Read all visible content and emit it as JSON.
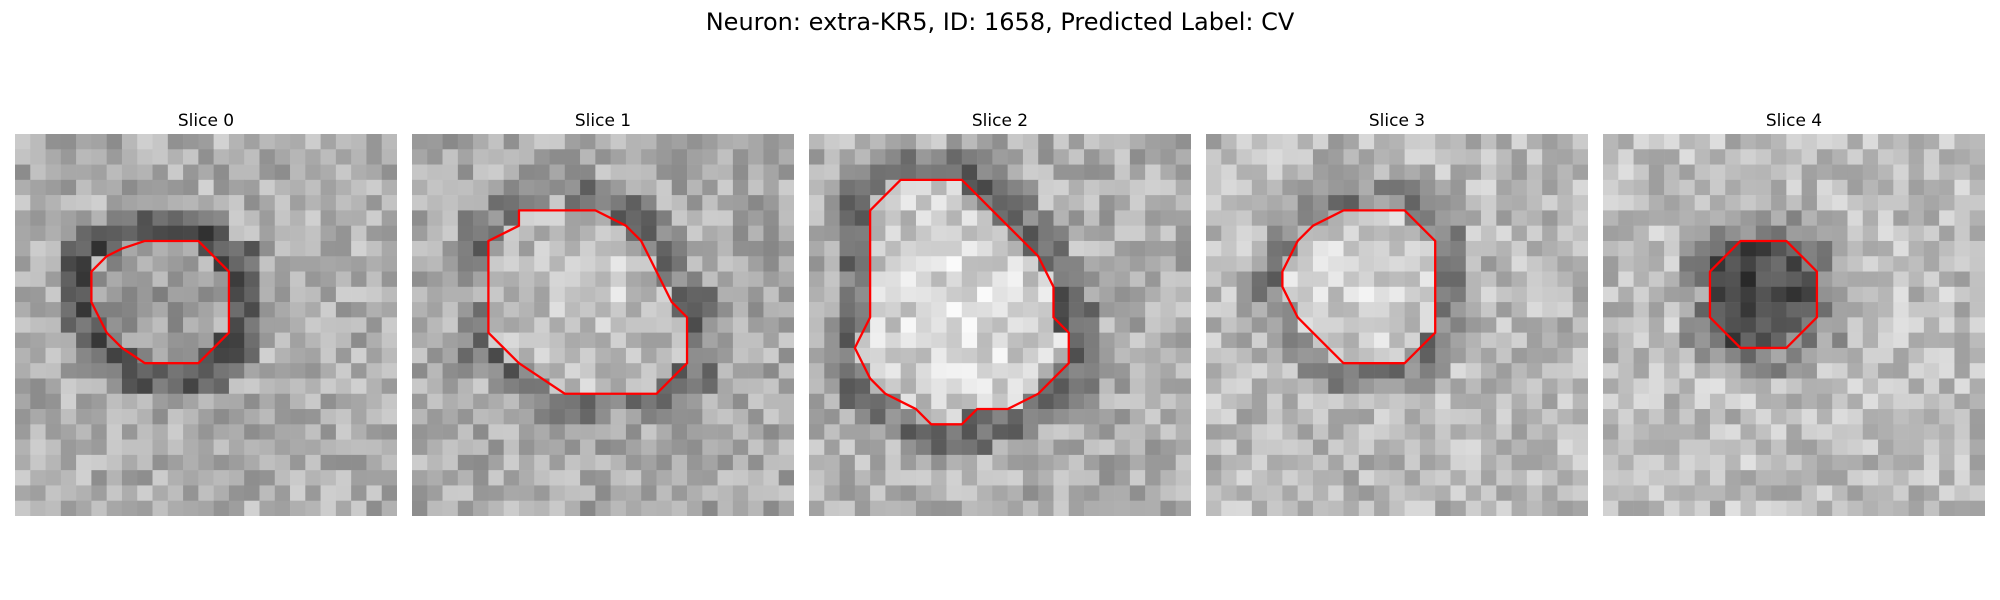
{
  "figure": {
    "title": "Neuron: extra-KR5, ID: 1658, Predicted Label: CV"
  },
  "contour_color": "#ff0000",
  "slices": [
    {
      "label": "Slice 0",
      "contour": [
        [
          8.5,
          7
        ],
        [
          12,
          7
        ],
        [
          14,
          9
        ],
        [
          14,
          13
        ],
        [
          13,
          14
        ],
        [
          12,
          15
        ],
        [
          8.5,
          15
        ],
        [
          7,
          14
        ],
        [
          6,
          13
        ],
        [
          5,
          11
        ],
        [
          5,
          9
        ],
        [
          6,
          8
        ],
        [
          7,
          7.5
        ]
      ]
    },
    {
      "label": "Slice 1",
      "contour": [
        [
          7,
          5
        ],
        [
          12,
          5
        ],
        [
          14,
          6
        ],
        [
          15,
          7
        ],
        [
          16,
          9
        ],
        [
          17,
          11
        ],
        [
          18,
          12
        ],
        [
          18,
          15
        ],
        [
          17,
          16
        ],
        [
          16,
          17
        ],
        [
          10,
          17
        ],
        [
          7,
          15
        ],
        [
          6,
          14
        ],
        [
          5,
          13
        ],
        [
          5,
          7
        ],
        [
          7,
          6
        ]
      ]
    },
    {
      "label": "Slice 2",
      "contour": [
        [
          6,
          3
        ],
        [
          10,
          3
        ],
        [
          11,
          4
        ],
        [
          12,
          5
        ],
        [
          13,
          6
        ],
        [
          14,
          7
        ],
        [
          15,
          8
        ],
        [
          16,
          10
        ],
        [
          16,
          12
        ],
        [
          17,
          13
        ],
        [
          17,
          15
        ],
        [
          16,
          16
        ],
        [
          15,
          17
        ],
        [
          13,
          18
        ],
        [
          11,
          18
        ],
        [
          10,
          19
        ],
        [
          8,
          19
        ],
        [
          7,
          18
        ],
        [
          5,
          17
        ],
        [
          4,
          16
        ],
        [
          3,
          14
        ],
        [
          4,
          12
        ],
        [
          4,
          8
        ],
        [
          4,
          5
        ],
        [
          5,
          4
        ]
      ]
    },
    {
      "label": "Slice 3",
      "contour": [
        [
          9,
          5
        ],
        [
          13,
          5
        ],
        [
          14,
          6
        ],
        [
          15,
          7
        ],
        [
          15,
          10
        ],
        [
          15,
          13
        ],
        [
          14,
          14
        ],
        [
          13,
          15
        ],
        [
          12,
          15
        ],
        [
          9,
          15
        ],
        [
          8,
          14
        ],
        [
          7,
          13
        ],
        [
          6,
          12
        ],
        [
          5,
          10
        ],
        [
          5,
          9
        ],
        [
          6,
          7
        ],
        [
          7,
          6
        ],
        [
          8,
          5.5
        ]
      ]
    },
    {
      "label": "Slice 4",
      "contour": [
        [
          9,
          7
        ],
        [
          12,
          7
        ],
        [
          13,
          8
        ],
        [
          14,
          9
        ],
        [
          14,
          12
        ],
        [
          13,
          13
        ],
        [
          12,
          14
        ],
        [
          9,
          14
        ],
        [
          8,
          13
        ],
        [
          7,
          12
        ],
        [
          7,
          9
        ],
        [
          8,
          8
        ]
      ]
    }
  ]
}
